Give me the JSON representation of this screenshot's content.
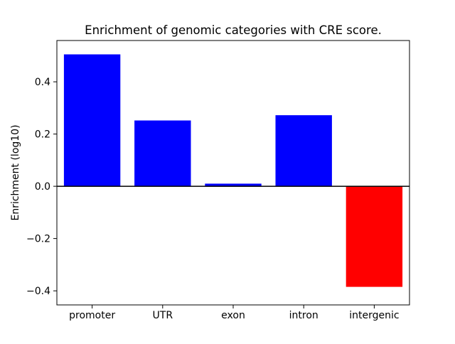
{
  "chart_data": {
    "type": "bar",
    "title": "Enrichment of genomic categories with CRE score.",
    "xlabel": "",
    "ylabel": "Enrichment (log10)",
    "categories": [
      "promoter",
      "UTR",
      "exon",
      "intron",
      "intergenic"
    ],
    "values": [
      0.505,
      0.252,
      0.01,
      0.272,
      -0.385
    ],
    "bar_colors": [
      "#0000ff",
      "#0000ff",
      "#0000ff",
      "#0000ff",
      "#ff0000"
    ],
    "positive_color": "#0000ff",
    "negative_color": "#ff0000",
    "ylim": [
      -0.454,
      0.558
    ],
    "yticks": [
      -0.4,
      -0.2,
      0.0,
      0.2,
      0.4
    ],
    "ytick_labels": [
      "−0.4",
      "−0.2",
      "0.0",
      "0.2",
      "0.4"
    ],
    "zero_line": true,
    "grid": false,
    "legend": null,
    "background_color": "#ffffff",
    "axes_color": "#000000"
  }
}
